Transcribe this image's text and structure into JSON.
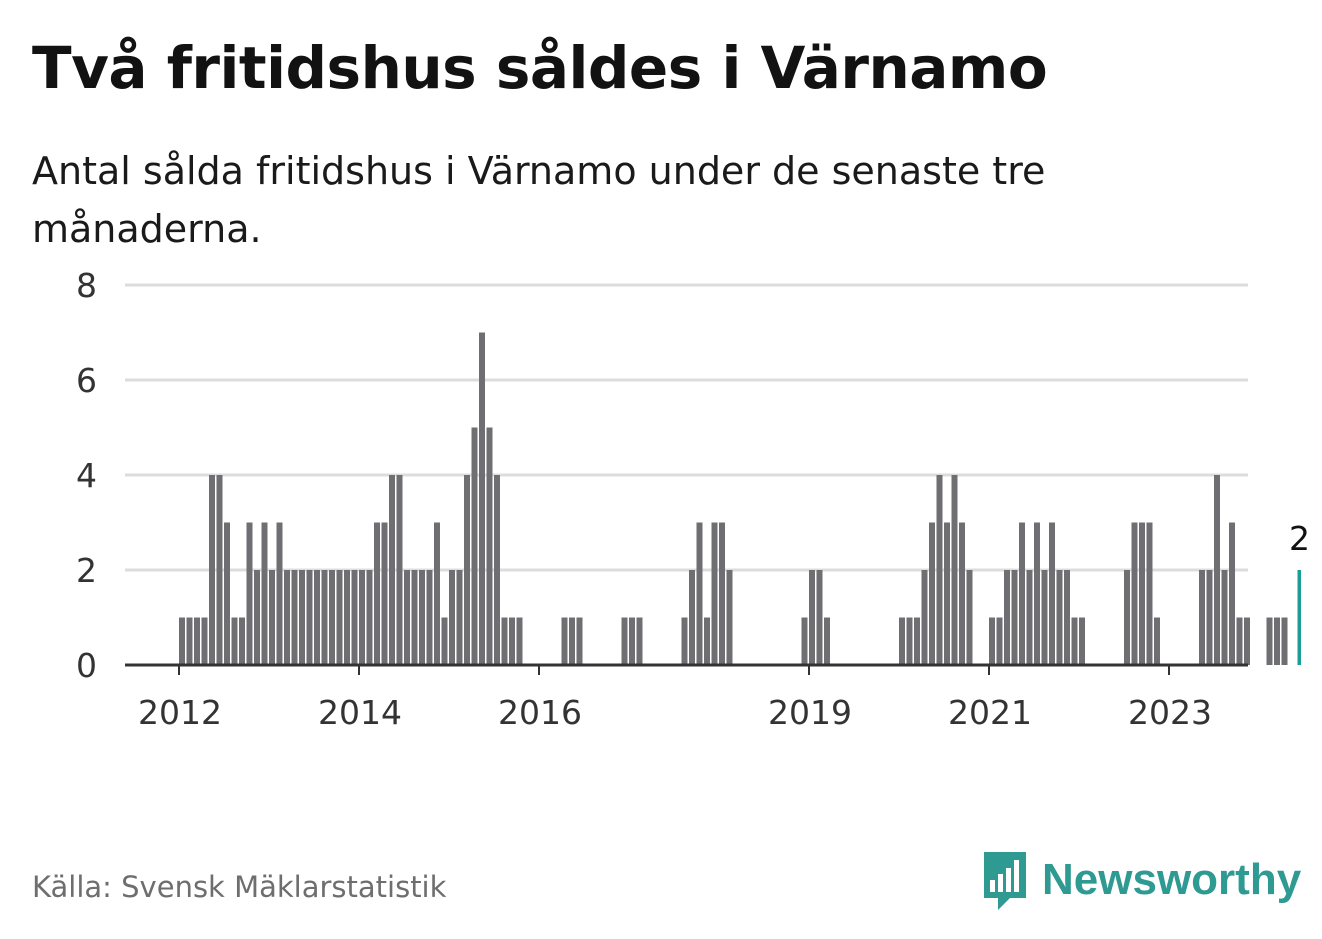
{
  "title": "Två fritidshus såldes i Värnamo",
  "subtitle": "Antal sålda fritidshus i Värnamo under de senaste tre månaderna.",
  "source": "Källa: Svensk Mäklarstatistik",
  "brand": {
    "name": "Newsworthy",
    "icon": "bar-chart-speech-bubble-icon"
  },
  "colors": {
    "bar": "#6f6e72",
    "highlight": "#1a9e96",
    "grid": "#dcdcdc",
    "axis": "#333333"
  },
  "chart_data": {
    "type": "bar",
    "ylim": [
      0,
      8
    ],
    "yticks": [
      "0",
      "2",
      "4",
      "6",
      "8"
    ],
    "xticks": [
      "2012",
      "2014",
      "2016",
      "2019",
      "2021",
      "2023"
    ],
    "x_start": "2012-01",
    "values": [
      1,
      1,
      1,
      1,
      4,
      4,
      3,
      1,
      1,
      3,
      2,
      3,
      2,
      3,
      2,
      2,
      2,
      2,
      2,
      2,
      2,
      2,
      2,
      2,
      2,
      2,
      3,
      3,
      4,
      4,
      2,
      2,
      2,
      2,
      3,
      1,
      2,
      2,
      4,
      5,
      7,
      5,
      4,
      1,
      1,
      1,
      0,
      0,
      0,
      0,
      0,
      1,
      1,
      1,
      0,
      0,
      0,
      0,
      0,
      1,
      1,
      1,
      0,
      0,
      0,
      0,
      0,
      1,
      2,
      3,
      1,
      3,
      3,
      2,
      0,
      0,
      0,
      0,
      0,
      0,
      0,
      0,
      0,
      1,
      2,
      2,
      1,
      0,
      0,
      0,
      0,
      0,
      0,
      0,
      0,
      0,
      1,
      1,
      1,
      2,
      3,
      4,
      3,
      4,
      3,
      2,
      0,
      0,
      1,
      1,
      2,
      2,
      3,
      2,
      3,
      2,
      3,
      2,
      2,
      1,
      1,
      0,
      0,
      0,
      0,
      0,
      2,
      3,
      3,
      3,
      1,
      0,
      0,
      0,
      0,
      0,
      2,
      2,
      4,
      2,
      3,
      1,
      1,
      0,
      0,
      1,
      1,
      1,
      0,
      2
    ],
    "highlight_last": true,
    "value_label": "2",
    "grid": true
  }
}
